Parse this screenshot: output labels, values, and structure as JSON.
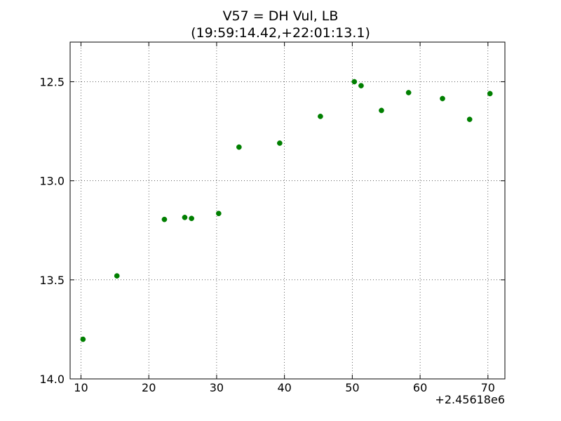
{
  "chart_data": {
    "type": "scatter",
    "title": "V57 = DH Vul, LB",
    "subtitle": "(19:59:14.42,+22:01:13.1)",
    "xlabel": "",
    "ylabel": "",
    "x_offset_label": "+2.45618e6",
    "x_ticks": [
      10,
      20,
      30,
      40,
      50,
      60,
      70
    ],
    "x_tick_labels": [
      "10",
      "20",
      "30",
      "40",
      "50",
      "60",
      "70"
    ],
    "y_ticks": [
      12.5,
      13.0,
      13.5,
      14.0
    ],
    "y_tick_labels": [
      "12.5",
      "13.0",
      "13.5",
      "14.0"
    ],
    "xlim": [
      8.4,
      72.5
    ],
    "ylim": [
      12.3,
      14.0
    ],
    "y_inverted": true,
    "grid": true,
    "series": [
      {
        "color": "#007f00",
        "points": [
          {
            "x": 10.3,
            "y": 13.8
          },
          {
            "x": 15.3,
            "y": 13.48
          },
          {
            "x": 22.3,
            "y": 13.195
          },
          {
            "x": 25.3,
            "y": 13.185
          },
          {
            "x": 26.3,
            "y": 13.19
          },
          {
            "x": 30.3,
            "y": 13.165
          },
          {
            "x": 33.3,
            "y": 12.83
          },
          {
            "x": 39.3,
            "y": 12.81
          },
          {
            "x": 45.3,
            "y": 12.675
          },
          {
            "x": 50.3,
            "y": 12.5
          },
          {
            "x": 51.3,
            "y": 12.52
          },
          {
            "x": 54.3,
            "y": 12.645
          },
          {
            "x": 58.3,
            "y": 12.555
          },
          {
            "x": 63.3,
            "y": 12.585
          },
          {
            "x": 67.3,
            "y": 12.69
          },
          {
            "x": 70.3,
            "y": 12.56
          }
        ]
      }
    ]
  }
}
